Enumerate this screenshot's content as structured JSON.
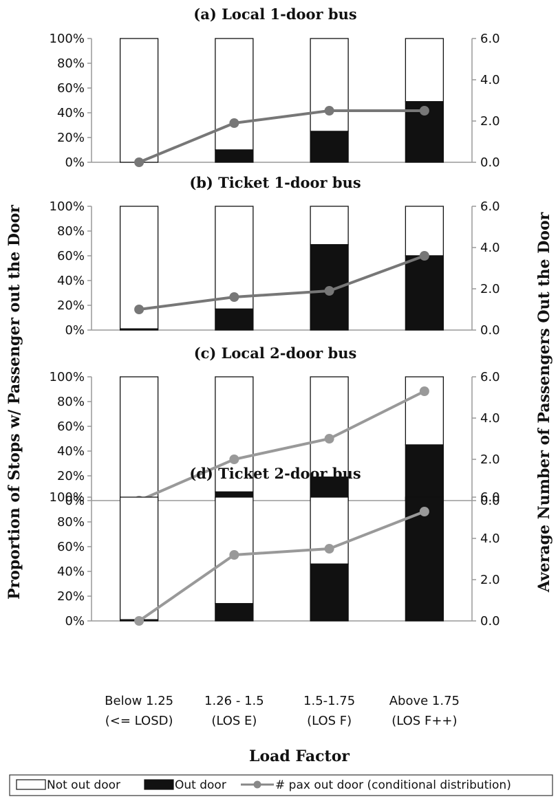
{
  "chart_data": {
    "type": "bar",
    "categories": [
      {
        "line1": "Below 1.25",
        "line2": "(<= LOSD)"
      },
      {
        "line1": "1.26 - 1.5",
        "line2": "(LOS E)"
      },
      {
        "line1": "1.5-1.75",
        "line2": "(LOS F)"
      },
      {
        "line1": "Above 1.75",
        "line2": "(LOS F++)"
      }
    ],
    "xlabel": "Load Factor",
    "ylabel_left": "Proportion of Stops w/ Passenger out the Door",
    "ylabel_right": "Average Number of Passengers Out the Door",
    "y_left_ticks": [
      "0%",
      "20%",
      "40%",
      "60%",
      "80%",
      "100%"
    ],
    "y_right_ticks": [
      "0.0",
      "2.0",
      "4.0",
      "6.0"
    ],
    "y_left_range": [
      0,
      100
    ],
    "y_right_range": [
      0,
      6
    ],
    "legend": {
      "position": "bottom",
      "items": [
        {
          "label": "Not out door",
          "kind": "bar",
          "fill": "#ffffff"
        },
        {
          "label": "Out door",
          "kind": "bar",
          "fill": "#111111"
        },
        {
          "label": "# pax out door (conditional distribution)",
          "kind": "line",
          "color": "#888888"
        }
      ]
    },
    "panels": [
      {
        "title": "(a) Local 1-door bus",
        "out_door_pct": [
          0,
          10,
          25,
          49
        ],
        "not_out_door_pct": [
          100,
          90,
          75,
          51
        ],
        "pax_out_door": [
          0.0,
          1.9,
          2.5,
          2.5
        ],
        "line_color": "#777777"
      },
      {
        "title": "(b) Ticket 1-door bus",
        "out_door_pct": [
          1,
          17,
          69,
          60
        ],
        "not_out_door_pct": [
          99,
          83,
          31,
          40
        ],
        "pax_out_door": [
          1.0,
          1.6,
          1.9,
          3.6
        ],
        "line_color": "#777777"
      },
      {
        "title": "(c) Local 2-door bus",
        "out_door_pct": [
          0,
          7,
          19,
          45
        ],
        "not_out_door_pct": [
          100,
          93,
          81,
          55
        ],
        "pax_out_door": [
          0.0,
          2.0,
          3.0,
          5.3
        ],
        "line_color": "#999999"
      },
      {
        "title": "(d) Ticket 2-door bus",
        "out_door_pct": [
          1,
          14,
          46,
          100
        ],
        "not_out_door_pct": [
          99,
          86,
          54,
          0
        ],
        "pax_out_door": [
          0.0,
          3.2,
          3.5,
          5.3
        ],
        "line_color": "#999999"
      }
    ]
  }
}
